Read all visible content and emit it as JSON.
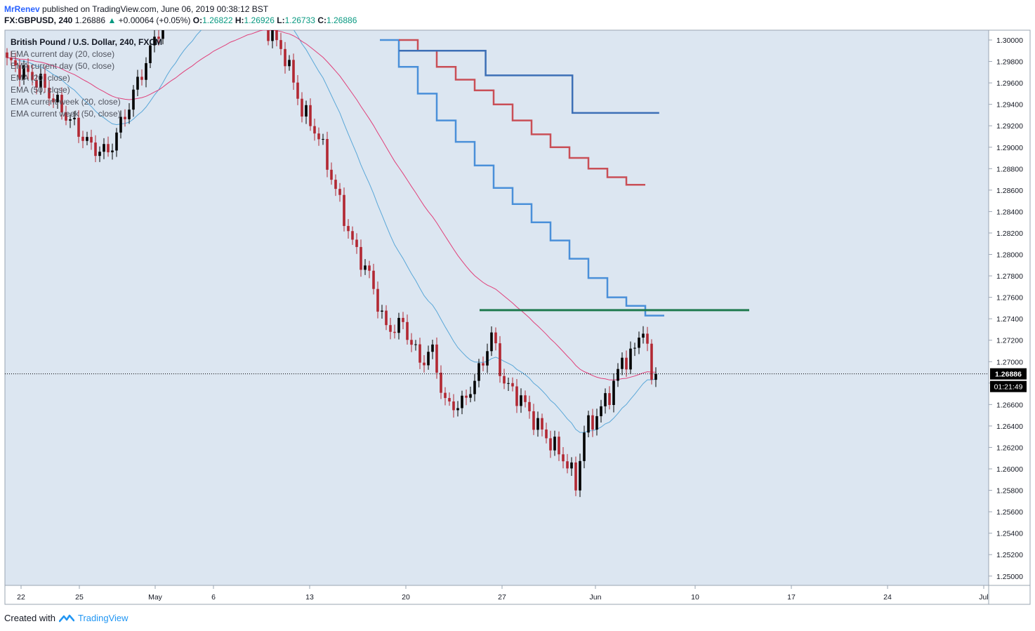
{
  "header": {
    "author": "MrRenev",
    "published_text": "published on TradingView.com, June 06, 2019 00:38:12 BST",
    "symbol": "FX:GBPUSD, 240",
    "last": "1.26886",
    "change": "+0.00064 (+0.05%)",
    "open_label": "O:",
    "open": "1.26822",
    "high_label": "H:",
    "high": "1.26926",
    "low_label": "L:",
    "low": "1.26733",
    "close_label": "C:",
    "close": "1.26886"
  },
  "legend": {
    "title": "British Pound / U.S. Dollar, 240, FXCM",
    "items": [
      "EMA current day (20, close)",
      "EMA current day (50, close)",
      "EMA (20, close)",
      "EMA (50, close)",
      "EMA current week (20, close)",
      "EMA current week (50, close)"
    ]
  },
  "price_badge": {
    "price": "1.26886",
    "countdown": "01:21:49"
  },
  "footer": {
    "created_with": "Created with",
    "brand": "TradingView"
  },
  "colors": {
    "background": "#dce6f1",
    "bull": "#000000",
    "bear": "#b22833",
    "ema20": "#5aa7d8",
    "ema50": "#e0407a",
    "week_ema20": "#4a90d9",
    "week_ema50": "#c94f57",
    "day_ema": "#3d6fb6",
    "resistance": "#1f7a4f"
  },
  "chart_data": {
    "type": "candlestick",
    "timeframe": "240",
    "y_ticks": [
      "1.30000",
      "1.29800",
      "1.29600",
      "1.29400",
      "1.29200",
      "1.29000",
      "1.28800",
      "1.28600",
      "1.28400",
      "1.28200",
      "1.28000",
      "1.27800",
      "1.27600",
      "1.27400",
      "1.27200",
      "1.27000",
      "1.26800",
      "1.26600",
      "1.26400",
      "1.26200",
      "1.26000",
      "1.25800",
      "1.25600",
      "1.25400",
      "1.25200",
      "1.25000"
    ],
    "x_ticks": [
      "22",
      "25",
      "May",
      "6",
      "13",
      "20",
      "27",
      "Jun",
      "10",
      "17",
      "24",
      "Jul"
    ],
    "ylim": [
      1.25,
      1.3
    ],
    "resistance_level": 1.2748,
    "price_anchors": [
      {
        "t": 0,
        "p": 1.298
      },
      {
        "t": 8,
        "p": 1.296
      },
      {
        "t": 14,
        "p": 1.293
      },
      {
        "t": 20,
        "p": 1.29
      },
      {
        "t": 24,
        "p": 1.2895
      },
      {
        "t": 28,
        "p": 1.293
      },
      {
        "t": 34,
        "p": 1.299
      },
      {
        "t": 38,
        "p": 1.303
      },
      {
        "t": 46,
        "p": 1.305
      },
      {
        "t": 60,
        "p": 1.304
      },
      {
        "t": 62,
        "p": 1.301
      },
      {
        "t": 66,
        "p": 1.2985
      },
      {
        "t": 70,
        "p": 1.2935
      },
      {
        "t": 74,
        "p": 1.291
      },
      {
        "t": 78,
        "p": 1.286
      },
      {
        "t": 82,
        "p": 1.281
      },
      {
        "t": 86,
        "p": 1.278
      },
      {
        "t": 90,
        "p": 1.273
      },
      {
        "t": 94,
        "p": 1.2735
      },
      {
        "t": 98,
        "p": 1.27
      },
      {
        "t": 101,
        "p": 1.271
      },
      {
        "t": 104,
        "p": 1.266
      },
      {
        "t": 108,
        "p": 1.266
      },
      {
        "t": 112,
        "p": 1.269
      },
      {
        "t": 115,
        "p": 1.2725
      },
      {
        "t": 118,
        "p": 1.268
      },
      {
        "t": 122,
        "p": 1.2665
      },
      {
        "t": 126,
        "p": 1.264
      },
      {
        "t": 130,
        "p": 1.262
      },
      {
        "t": 133,
        "p": 1.2605
      },
      {
        "t": 135,
        "p": 1.2585
      },
      {
        "t": 137,
        "p": 1.2635
      },
      {
        "t": 140,
        "p": 1.265
      },
      {
        "t": 143,
        "p": 1.267
      },
      {
        "t": 146,
        "p": 1.27
      },
      {
        "t": 149,
        "p": 1.271
      },
      {
        "t": 151,
        "p": 1.2735
      },
      {
        "t": 153,
        "p": 1.2682
      },
      {
        "t": 154,
        "p": 1.2689
      }
    ],
    "week_ema20_steps": [
      1.3,
      1.2975,
      1.295,
      1.2925,
      1.2905,
      1.2883,
      1.2862,
      1.2847,
      1.283,
      1.2813,
      1.2796,
      1.2778,
      1.276,
      1.2752,
      1.2743
    ],
    "week_ema50_steps": [
      1.3,
      1.299,
      1.2975,
      1.2963,
      1.2953,
      1.294,
      1.2925,
      1.2912,
      1.29,
      1.289,
      1.288,
      1.2872,
      1.2865
    ],
    "day_ema_steps": [
      1.299,
      1.299,
      1.2967,
      1.2967,
      1.2932,
      1.2932
    ]
  }
}
